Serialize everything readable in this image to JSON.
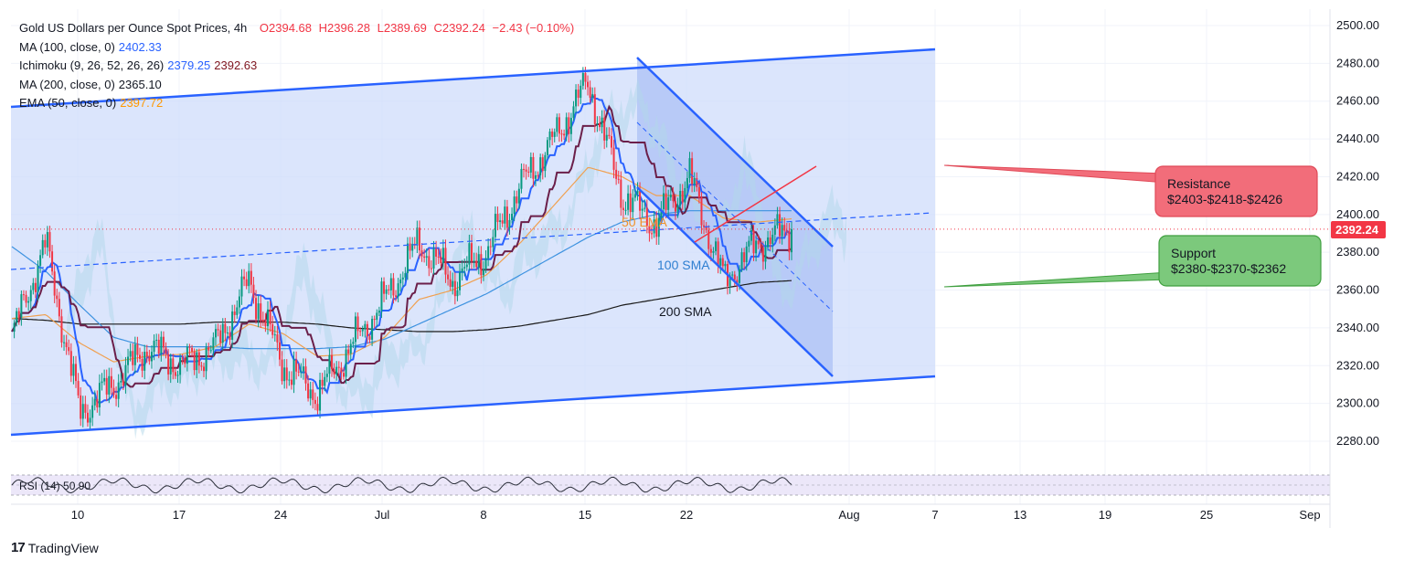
{
  "legend": {
    "symbol": "Gold US Dollars per Ounce Spot Prices, 4h",
    "ohlc": {
      "o": "O2394.68",
      "h": "H2396.28",
      "l": "L2389.69",
      "c": "C2392.24",
      "chg": "−2.43 (−0.10%)"
    },
    "indicators": [
      {
        "label": "MA (100, close, 0)",
        "values": [
          "2402.33"
        ],
        "colors": [
          "#2962ff"
        ]
      },
      {
        "label": "Ichimoku (9, 26, 52, 26, 26)",
        "values": [
          "2379.25",
          "2392.63"
        ],
        "colors": [
          "#2962ff",
          "#801922"
        ]
      },
      {
        "label": "MA (200, close, 0)",
        "values": [
          "2365.10"
        ],
        "colors": [
          "#131722"
        ]
      },
      {
        "label": "EMA (50, close, 0)",
        "values": [
          "2397.72"
        ],
        "colors": [
          "#ff9800"
        ]
      }
    ]
  },
  "colors": {
    "up": "#089981",
    "down": "#f23645",
    "channel": "#2962ff",
    "channel_fill": "#cfdcfb",
    "sma100": "#3d92e0",
    "ema50": "#f0a050",
    "sma200": "#1a1a1a",
    "tenkan": "#2962ff",
    "kijun": "#6b1f4a",
    "cloud_bull": "#b2d7ea",
    "cloud_bear": "#f7c9d3",
    "price": "#f23645",
    "resistance": "#f26d7a",
    "support": "#7cc97c"
  },
  "annotations": {
    "ema_label": "50 EMA",
    "sma100_label": "100 SMA",
    "sma200_label": "200 SMA",
    "resistance_title": "Resistance",
    "resistance_levels": "$2403-$2418-$2426",
    "support_title": "Support",
    "support_levels": "$2380-$2370-$2362"
  },
  "rsi": {
    "label": "RSI (14)",
    "value": "50.90"
  },
  "price_tag": "2392.24",
  "brand": "TradingView",
  "chart_data": {
    "type": "candlestick",
    "timeframe": "4h",
    "y_ticks": [
      "2500.00",
      "2480.00",
      "2460.00",
      "2440.00",
      "2420.00",
      "2400.00",
      "2380.00",
      "2360.00",
      "2340.00",
      "2320.00",
      "2300.00",
      "2280.00"
    ],
    "ylim": [
      2270,
      2502
    ],
    "x_ticks": [
      "10",
      "17",
      "24",
      "Jul",
      "8",
      "15",
      "22",
      "Aug",
      "7",
      "13",
      "19",
      "25",
      "Sep"
    ],
    "last_price": 2392.24,
    "series": [
      {
        "name": "Gold Spot close (approx)",
        "x": [
          "Jun 6",
          "Jun 8",
          "Jun 10",
          "Jun 12",
          "Jun 14",
          "Jun 17",
          "Jun 20",
          "Jun 24",
          "Jun 26",
          "Jun 28",
          "Jul 1",
          "Jul 3",
          "Jul 5",
          "Jul 8",
          "Jul 10",
          "Jul 12",
          "Jul 15",
          "Jul 17",
          "Jul 19",
          "Jul 22",
          "Jul 24",
          "Jul 25",
          "Jul 26",
          "Jul 29"
        ],
        "values": [
          2335,
          2385,
          2295,
          2310,
          2330,
          2320,
          2330,
          2365,
          2320,
          2305,
          2330,
          2355,
          2385,
          2365,
          2380,
          2415,
          2440,
          2470,
          2410,
          2395,
          2420,
          2365,
          2385,
          2392
        ]
      },
      {
        "name": "MA (100, close, 0)",
        "values": [
          2383,
          2370,
          2352,
          2335,
          2330,
          2330,
          2330,
          2329,
          2329,
          2329,
          2330,
          2334,
          2342,
          2350,
          2358,
          2368,
          2378,
          2388,
          2396,
          2400,
          2402,
          2402,
          2402,
          2402
        ]
      },
      {
        "name": "MA (200, close, 0)",
        "values": [
          2345,
          2344,
          2342,
          2342,
          2342,
          2342,
          2343,
          2343,
          2343,
          2342,
          2340,
          2339,
          2338,
          2338,
          2339,
          2341,
          2344,
          2347,
          2352,
          2355,
          2358,
          2361,
          2364,
          2365
        ]
      },
      {
        "name": "EMA (50, close, 0)",
        "values": [
          2345,
          2347,
          2332,
          2322,
          2325,
          2326,
          2330,
          2342,
          2337,
          2325,
          2326,
          2335,
          2355,
          2360,
          2368,
          2385,
          2405,
          2425,
          2420,
          2410,
          2410,
          2398,
          2396,
          2397.72
        ]
      }
    ],
    "rsi": {
      "value": 50.9,
      "upper": 70,
      "lower": 30
    }
  }
}
